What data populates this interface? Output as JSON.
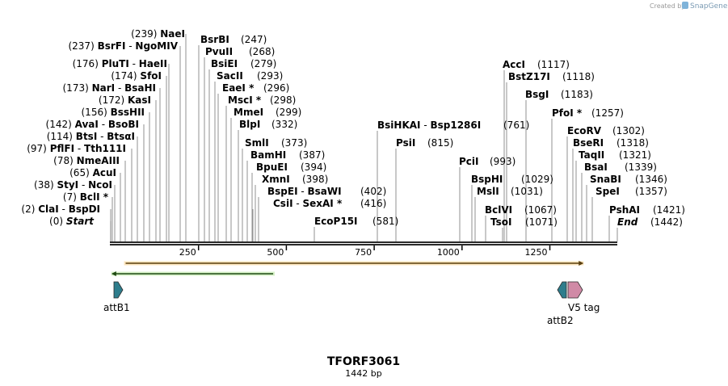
{
  "credit": {
    "prefix": "Created by",
    "brand": "SnapGene"
  },
  "map": {
    "title": "TFORF3061",
    "length_text": "1442 bp",
    "length_bp": 1442,
    "ticks": [
      250,
      500,
      750,
      1000,
      1250
    ]
  },
  "left_sites": [
    {
      "pos": "(239)",
      "names": [
        "NaeI"
      ],
      "bp": 239
    },
    {
      "pos": "(237)",
      "names": [
        "BsrFI",
        "NgoMIV"
      ],
      "bp": 237
    },
    {
      "pos": "(176)",
      "names": [
        "PluTI",
        "HaeII"
      ],
      "bp": 176
    },
    {
      "pos": "(174)",
      "names": [
        "SfoI"
      ],
      "bp": 174
    },
    {
      "pos": "(173)",
      "names": [
        "NarI",
        "BsaHI"
      ],
      "bp": 173
    },
    {
      "pos": "(172)",
      "names": [
        "KasI"
      ],
      "bp": 172
    },
    {
      "pos": "(156)",
      "names": [
        "BssHII"
      ],
      "bp": 156
    },
    {
      "pos": "(142)",
      "names": [
        "AvaI",
        "BsoBI"
      ],
      "bp": 142
    },
    {
      "pos": "(114)",
      "names": [
        "BtsI",
        "BtsαI"
      ],
      "bp": 114
    },
    {
      "pos": "(97)",
      "names": [
        "PflFI",
        "Tth111I"
      ],
      "bp": 97
    },
    {
      "pos": "(78)",
      "names": [
        "NmeAIII"
      ],
      "bp": 78
    },
    {
      "pos": "(65)",
      "names": [
        "AcuI"
      ],
      "bp": 65
    },
    {
      "pos": "(38)",
      "names": [
        "StyI",
        "NcoI"
      ],
      "bp": 38
    },
    {
      "pos": "(7)",
      "names": [
        "BclI *"
      ],
      "bp": 7
    },
    {
      "pos": "(2)",
      "names": [
        "ClaI",
        "BspDI"
      ],
      "bp": 2
    },
    {
      "pos": "(0)",
      "names": [
        "Start"
      ],
      "bp": 0,
      "italic": true
    }
  ],
  "mid_sites": [
    {
      "names": [
        "BsrBI"
      ],
      "pos": "(247)",
      "bp": 247
    },
    {
      "names": [
        "PvuII"
      ],
      "pos": "(268)",
      "bp": 268
    },
    {
      "names": [
        "BsiEI"
      ],
      "pos": "(279)",
      "bp": 279
    },
    {
      "names": [
        "SacII"
      ],
      "pos": "(293)",
      "bp": 293
    },
    {
      "names": [
        "EaeI *"
      ],
      "pos": "(296)",
      "bp": 296
    },
    {
      "names": [
        "MscI *"
      ],
      "pos": "(298)",
      "bp": 298
    },
    {
      "names": [
        "MmeI"
      ],
      "pos": "(299)",
      "bp": 299
    },
    {
      "names": [
        "BlpI"
      ],
      "pos": "(332)",
      "bp": 332
    },
    {
      "names": [
        "SmlI"
      ],
      "pos": "(373)",
      "bp": 373
    },
    {
      "names": [
        "BamHI"
      ],
      "pos": "(387)",
      "bp": 387
    },
    {
      "names": [
        "BpuEI"
      ],
      "pos": "(394)",
      "bp": 394
    },
    {
      "names": [
        "XmnI"
      ],
      "pos": "(398)",
      "bp": 398
    },
    {
      "names": [
        "BspEI",
        "BsaWI"
      ],
      "pos": "(402)",
      "bp": 402
    },
    {
      "names": [
        "CsiI",
        "SexAI *"
      ],
      "pos": "(416)",
      "bp": 416
    },
    {
      "names": [
        "EcoP15I"
      ],
      "pos": "(581)",
      "bp": 581
    },
    {
      "names": [
        "BsiHKAI",
        "Bsp1286I"
      ],
      "pos": "(761)",
      "bp": 761
    },
    {
      "names": [
        "PsiI"
      ],
      "pos": "(815)",
      "bp": 815
    }
  ],
  "right_sites": [
    {
      "names": [
        "AccI"
      ],
      "pos": "(1117)",
      "bp": 1117
    },
    {
      "names": [
        "BstZ17I"
      ],
      "pos": "(1118)",
      "bp": 1118
    },
    {
      "names": [
        "BsgI"
      ],
      "pos": "(1183)",
      "bp": 1183
    },
    {
      "names": [
        "PfoI *"
      ],
      "pos": "(1257)",
      "bp": 1257
    },
    {
      "names": [
        "EcoRV"
      ],
      "pos": "(1302)",
      "bp": 1302
    },
    {
      "names": [
        "BseRI"
      ],
      "pos": "(1318)",
      "bp": 1318
    },
    {
      "names": [
        "TaqII"
      ],
      "pos": "(1321)",
      "bp": 1321
    },
    {
      "names": [
        "BsaI"
      ],
      "pos": "(1339)",
      "bp": 1339
    },
    {
      "names": [
        "SnaBI"
      ],
      "pos": "(1346)",
      "bp": 1346
    },
    {
      "names": [
        "SpeI"
      ],
      "pos": "(1357)",
      "bp": 1357
    },
    {
      "names": [
        "PshAI"
      ],
      "pos": "(1421)",
      "bp": 1421
    },
    {
      "names": [
        "End"
      ],
      "pos": "(1442)",
      "bp": 1442,
      "italic": true
    },
    {
      "names": [
        "PciI"
      ],
      "pos": "(993)",
      "bp": 993
    },
    {
      "names": [
        "BspHI"
      ],
      "pos": "(1029)",
      "bp": 1029
    },
    {
      "names": [
        "MslI"
      ],
      "pos": "(1031)",
      "bp": 1031
    },
    {
      "names": [
        "BclVI"
      ],
      "pos": "(1067)",
      "bp": 1067
    },
    {
      "names": [
        "TsoI"
      ],
      "pos": "(1071)",
      "bp": 1071
    }
  ],
  "features": [
    {
      "name": "attB1",
      "color": "#2e7d8c",
      "start_bp": 4,
      "end_bp": 25,
      "direction": "forward"
    },
    {
      "name": "attB2",
      "color": "#2e7d8c",
      "start_bp": 1278,
      "end_bp": 1302,
      "direction": "reverse"
    },
    {
      "name": "V5 tag",
      "color": "#d08aa6",
      "start_bp": 1306,
      "end_bp": 1348,
      "direction": "forward"
    }
  ],
  "orfs": [
    {
      "name": "orange-orf",
      "color": "#f0a21a",
      "start_bp": 38,
      "end_bp": 1346,
      "direction": "forward"
    },
    {
      "name": "green-orf",
      "color": "#55c438",
      "start_bp": 2,
      "end_bp": 467,
      "direction": "reverse"
    }
  ]
}
